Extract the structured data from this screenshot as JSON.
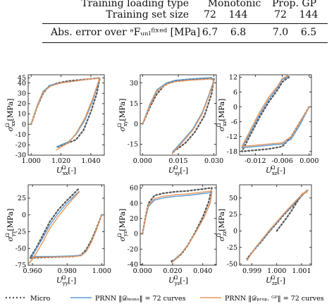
{
  "table": {
    "header_row1": {
      "label": "Training loading type",
      "col_a": "Monotonic",
      "col_b": "Prop. GP"
    },
    "header_row2": {
      "label": "Training set size",
      "values": [
        "72",
        "144",
        "72",
        "144"
      ]
    },
    "body_row": {
      "label": "Abs. error over ᵊFᵤₙₗᶠⁱˣᵉᵈ [MPa]",
      "values": [
        "6.7",
        "6.8",
        "7.0",
        "6.5"
      ]
    }
  },
  "legend": {
    "micro": "Micro",
    "mono": "PRNN ‖𝒟ₘₒₙₒ‖ = 72 curves",
    "gp": "PRNN ‖𝒟ₚᵣₒₚ. ᴳᴾ‖ = 72 curves"
  },
  "colors": {
    "micro": "#555555",
    "mono": "#5b9bd5",
    "gp": "#e8965a"
  },
  "chart_data": [
    {
      "type": "line",
      "xlabel": "U_xx^Ω [-]",
      "ylabel": "σ_xx^Ω [MPa]",
      "xlim": [
        0.998,
        1.049
      ],
      "ylim": [
        -30,
        48
      ],
      "xticks": [
        1.0,
        1.02,
        1.04
      ],
      "xticklabels": [
        "1.000",
        "1.020",
        "1.040"
      ],
      "yticks": [
        -30,
        -20,
        -10,
        0,
        10,
        20,
        30,
        40,
        45
      ],
      "yticklabels": [
        "-30",
        "-20",
        "-10",
        "0",
        "10",
        "20",
        "30",
        "40",
        "45"
      ],
      "series": [
        {
          "name": "Micro",
          "x": [
            1.0,
            1.004,
            1.008,
            1.012,
            1.018,
            1.025,
            1.033,
            1.04,
            1.046,
            1.044,
            1.04,
            1.035,
            1.03,
            1.025,
            1.021,
            1.018
          ],
          "y": [
            0,
            17,
            30,
            37,
            40,
            42,
            43,
            44,
            45,
            30,
            12,
            -6,
            -15,
            -18,
            -20,
            -22
          ]
        },
        {
          "name": "mono",
          "x": [
            1.0,
            1.004,
            1.008,
            1.013,
            1.02,
            1.03,
            1.04,
            1.046,
            1.045,
            1.041,
            1.036,
            1.03,
            1.025,
            1.02,
            1.017
          ],
          "y": [
            0,
            18,
            32,
            38,
            40,
            42,
            44,
            45,
            40,
            22,
            4,
            -10,
            -17,
            -20,
            -22
          ]
        },
        {
          "name": "gp",
          "x": [
            1.0,
            1.004,
            1.008,
            1.013,
            1.02,
            1.03,
            1.04,
            1.046,
            1.045,
            1.041,
            1.036,
            1.03,
            1.025,
            1.02,
            1.017
          ],
          "y": [
            0,
            17,
            31,
            37,
            40,
            42,
            44,
            45,
            41,
            24,
            6,
            -9,
            -18,
            -22,
            -25
          ]
        }
      ]
    },
    {
      "type": "line",
      "xlabel": "U_xy^Ω [-]",
      "ylabel": "σ_xy^Ω [MPa]",
      "xlim": [
        -0.001,
        0.031
      ],
      "ylim": [
        -23,
        36
      ],
      "xticks": [
        0.0,
        0.015,
        0.03
      ],
      "xticklabels": [
        "0.000",
        "0.015",
        "0.030"
      ],
      "yticks": [
        -15,
        0,
        15,
        30
      ],
      "yticklabels": [
        "-15",
        "0",
        "15",
        "30"
      ],
      "series": [
        {
          "name": "Micro",
          "x": [
            0.0,
            0.003,
            0.006,
            0.009,
            0.012,
            0.016,
            0.02,
            0.024,
            0.028,
            0.03,
            0.029,
            0.026,
            0.022,
            0.018,
            0.015,
            0.013
          ],
          "y": [
            0,
            12,
            22,
            28,
            31,
            32,
            32.5,
            33,
            33,
            33,
            22,
            6,
            -6,
            -14,
            -18,
            -20
          ]
        },
        {
          "name": "mono",
          "x": [
            0.0,
            0.003,
            0.006,
            0.01,
            0.014,
            0.02,
            0.025,
            0.029,
            0.03,
            0.028,
            0.025,
            0.021,
            0.017,
            0.014,
            0.0125
          ],
          "y": [
            0,
            14,
            25,
            30,
            32,
            33,
            33.5,
            34,
            32,
            22,
            8,
            -4,
            -12,
            -18,
            -21
          ]
        },
        {
          "name": "gp",
          "x": [
            0.0,
            0.003,
            0.006,
            0.01,
            0.014,
            0.02,
            0.025,
            0.029,
            0.03,
            0.028,
            0.025,
            0.021,
            0.017,
            0.014,
            0.0125
          ],
          "y": [
            0,
            13,
            24,
            29,
            31,
            32,
            32.5,
            33,
            31,
            21,
            7,
            -5,
            -13,
            -19,
            -22
          ]
        }
      ]
    },
    {
      "type": "line",
      "xlabel": "U_xz^Ω [-]",
      "ylabel": "σ_xz^Ω [MPa]",
      "xlim": [
        -0.0155,
        0.0005
      ],
      "ylim": [
        -19.5,
        13
      ],
      "xticks": [
        -0.012,
        -0.006,
        0.0
      ],
      "xticklabels": [
        "-0.012",
        "-0.006",
        "0.000"
      ],
      "yticks": [
        -18,
        -12,
        -6,
        0,
        6,
        12
      ],
      "yticklabels": [
        "-18",
        "-12",
        "-6",
        "0",
        "6",
        "12"
      ],
      "series": [
        {
          "name": "Micro",
          "x": [
            0.0,
            -0.002,
            -0.004,
            -0.006,
            -0.009,
            -0.012,
            -0.015,
            -0.013,
            -0.011,
            -0.009,
            -0.007,
            -0.006,
            -0.005,
            -0.0045
          ],
          "y": [
            0,
            -6,
            -12,
            -16,
            -17,
            -17.5,
            -18,
            -11,
            -4,
            2,
            7,
            10,
            11.5,
            12
          ]
        },
        {
          "name": "mono",
          "x": [
            0.0,
            -0.002,
            -0.004,
            -0.006,
            -0.009,
            -0.012,
            -0.015,
            -0.013,
            -0.011,
            -0.009,
            -0.007,
            -0.006,
            -0.005,
            -0.0045
          ],
          "y": [
            0,
            -7,
            -13,
            -15,
            -15.5,
            -16,
            -16.5,
            -10,
            -3,
            3,
            8,
            11,
            12,
            12.5
          ]
        },
        {
          "name": "gp",
          "x": [
            0.0,
            -0.002,
            -0.004,
            -0.006,
            -0.009,
            -0.012,
            -0.015,
            -0.013,
            -0.011,
            -0.009,
            -0.007,
            -0.006,
            -0.005,
            -0.0045
          ],
          "y": [
            0,
            -6,
            -12,
            -14.5,
            -15,
            -15.5,
            -16,
            -9,
            -2,
            4,
            8.5,
            11.5,
            12.5,
            13
          ]
        }
      ]
    },
    {
      "type": "line",
      "xlabel": "U_yy^Ω [-]",
      "ylabel": "σ_yy^Ω [MPa]",
      "xlim": [
        0.9575,
        1.0015
      ],
      "ylim": [
        -75,
        45
      ],
      "xticks": [
        0.96,
        0.98,
        1.0
      ],
      "xticklabels": [
        "0.960",
        "0.980",
        "1.000"
      ],
      "yticks": [
        -75,
        -50,
        -25,
        0,
        25
      ],
      "yticklabels": [
        "-75",
        "-50",
        "-25",
        "0",
        "25"
      ],
      "series": [
        {
          "name": "Micro",
          "x": [
            1.0,
            0.997,
            0.994,
            0.991,
            0.988,
            0.984,
            0.978,
            0.972,
            0.966,
            0.96,
            0.9585,
            0.962,
            0.966,
            0.97,
            0.975,
            0.98,
            0.984,
            0.987
          ],
          "y": [
            0,
            -20,
            -38,
            -52,
            -60,
            -62,
            -62.5,
            -63,
            -63.5,
            -64,
            -64,
            -50,
            -30,
            -10,
            8,
            22,
            32,
            40
          ]
        },
        {
          "name": "mono",
          "x": [
            1.0,
            0.997,
            0.994,
            0.991,
            0.988,
            0.984,
            0.978,
            0.972,
            0.966,
            0.961,
            0.9595,
            0.962,
            0.966,
            0.97,
            0.975,
            0.98,
            0.984,
            0.987
          ],
          "y": [
            0,
            -22,
            -40,
            -54,
            -60,
            -61,
            -61.5,
            -62,
            -62,
            -62,
            -63,
            -52,
            -34,
            -15,
            3,
            18,
            28,
            35
          ]
        },
        {
          "name": "gp",
          "x": [
            1.0,
            0.997,
            0.994,
            0.991,
            0.988,
            0.984,
            0.978,
            0.972,
            0.966,
            0.961,
            0.958,
            0.962,
            0.966,
            0.97,
            0.975,
            0.98,
            0.984,
            0.987
          ],
          "y": [
            0,
            -22,
            -41,
            -55,
            -61,
            -62,
            -62.5,
            -63,
            -63,
            -63,
            -72,
            -58,
            -40,
            -20,
            -2,
            14,
            26,
            34
          ]
        }
      ]
    },
    {
      "type": "line",
      "xlabel": "U_yz^Ω [-]",
      "ylabel": "σ_yz^Ω [MPa]",
      "xlim": [
        -0.0015,
        0.049
      ],
      "ylim": [
        -41,
        64
      ],
      "xticks": [
        0.0,
        0.02,
        0.04
      ],
      "xticklabels": [
        "0.000",
        "0.020",
        "0.040"
      ],
      "yticks": [
        -40,
        -20,
        0,
        20,
        40,
        60
      ],
      "yticklabels": [
        "-40",
        "-20",
        "0",
        "20",
        "40",
        "60"
      ],
      "series": [
        {
          "name": "Micro",
          "x": [
            0.0,
            0.002,
            0.004,
            0.008,
            0.014,
            0.022,
            0.03,
            0.038,
            0.046,
            0.044,
            0.04,
            0.035,
            0.03,
            0.026,
            0.022,
            0.019
          ],
          "y": [
            0,
            22,
            40,
            50,
            53,
            55,
            56,
            58,
            60,
            42,
            22,
            2,
            -15,
            -26,
            -33,
            -36
          ]
        },
        {
          "name": "mono",
          "x": [
            0.0,
            0.002,
            0.004,
            0.008,
            0.014,
            0.022,
            0.03,
            0.038,
            0.046,
            0.045,
            0.041,
            0.036,
            0.031,
            0.026,
            0.022,
            0.0195
          ],
          "y": [
            0,
            20,
            36,
            44,
            47,
            49,
            50,
            52,
            54,
            40,
            22,
            4,
            -12,
            -25,
            -32,
            -37
          ]
        },
        {
          "name": "gp",
          "x": [
            0.0,
            0.002,
            0.004,
            0.008,
            0.014,
            0.022,
            0.03,
            0.038,
            0.046,
            0.045,
            0.041,
            0.036,
            0.031,
            0.026,
            0.022,
            0.0195
          ],
          "y": [
            0,
            21,
            38,
            46,
            49,
            51,
            52,
            54,
            56,
            41,
            22,
            4,
            -12,
            -25,
            -33,
            -38
          ]
        }
      ]
    },
    {
      "type": "line",
      "xlabel": "U_zz^Ω [-]",
      "ylabel": "σ_zz^Ω [MPa]",
      "xlim": [
        0.9985,
        1.0014
      ],
      "ylim": [
        -52,
        70
      ],
      "xticks": [
        0.999,
        1.0,
        1.001
      ],
      "xticklabels": [
        "0.999",
        "1.000",
        "1.001"
      ],
      "yticks": [
        -50,
        -25,
        0,
        25,
        50
      ],
      "yticklabels": [
        "-50",
        "-25",
        "0",
        "25",
        "50"
      ],
      "series": [
        {
          "name": "Micro",
          "x": [
            1.0,
            1.0002,
            1.0004,
            1.0006,
            1.0008,
            1.0009,
            1.001,
            1.0011,
            1.0012,
            1.0012,
            1.0009,
            1.0006,
            1.0003,
            1.0,
            0.9997,
            0.9994,
            0.9991,
            0.9988
          ],
          "y": [
            0,
            10,
            20,
            31,
            43,
            49,
            54,
            57,
            59,
            61,
            49,
            37,
            25,
            12,
            -1,
            -15,
            -28,
            -42
          ]
        },
        {
          "name": "mono",
          "x": [
            1.0011,
            1.0012,
            1.00125,
            1.0012,
            1.0009,
            1.0006,
            1.0003,
            1.0,
            0.9997,
            0.9994,
            0.9991,
            0.9988
          ],
          "y": [
            57,
            59,
            61,
            61,
            50,
            38,
            26,
            13,
            0,
            -14,
            -28,
            -44
          ]
        },
        {
          "name": "gp",
          "x": [
            1.001,
            1.0012,
            1.00128,
            1.00128,
            1.0009,
            1.0006,
            1.0003,
            1.0,
            0.9997,
            0.9994,
            0.9991,
            0.9988
          ],
          "y": [
            56,
            60,
            62,
            62,
            51,
            39,
            27,
            14,
            1,
            -13,
            -27,
            -45
          ]
        }
      ]
    }
  ]
}
